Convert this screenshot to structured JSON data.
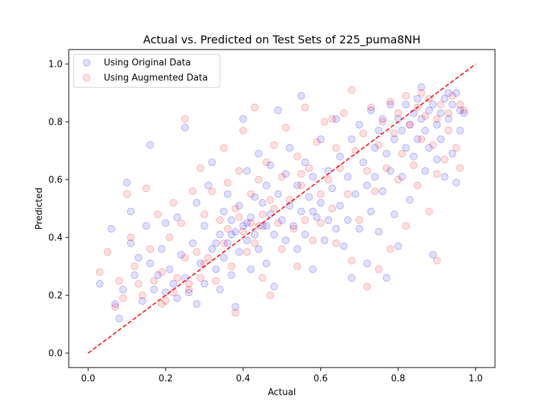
{
  "chart_data": {
    "type": "scatter",
    "title": "Actual vs. Predicted on Test Sets of 225_puma8NH",
    "xlabel": "Actual",
    "ylabel": "Predicted",
    "xlim": [
      -0.05,
      1.05
    ],
    "ylim": [
      -0.05,
      1.05
    ],
    "xticks": [
      "0.0",
      "0.2",
      "0.4",
      "0.6",
      "0.8",
      "1.0"
    ],
    "yticks": [
      "0.0",
      "0.2",
      "0.4",
      "0.6",
      "0.8",
      "1.0"
    ],
    "grid": false,
    "legend_position": "top-left",
    "colors": {
      "original": "#0000ff",
      "augmented": "#ff0000",
      "reference": "#ff0000"
    },
    "reference_line": {
      "style": "dashed",
      "from": [
        0,
        0
      ],
      "to": [
        1,
        1
      ]
    },
    "series": [
      {
        "name": "Using Original Data",
        "color": "#0000ff",
        "points": [
          [
            0.06,
            0.43
          ],
          [
            0.03,
            0.24
          ],
          [
            0.07,
            0.17
          ],
          [
            0.08,
            0.12
          ],
          [
            0.09,
            0.22
          ],
          [
            0.1,
            0.59
          ],
          [
            0.11,
            0.49
          ],
          [
            0.11,
            0.38
          ],
          [
            0.12,
            0.27
          ],
          [
            0.13,
            0.33
          ],
          [
            0.14,
            0.18
          ],
          [
            0.15,
            0.44
          ],
          [
            0.16,
            0.72
          ],
          [
            0.16,
            0.31
          ],
          [
            0.17,
            0.22
          ],
          [
            0.18,
            0.27
          ],
          [
            0.19,
            0.36
          ],
          [
            0.2,
            0.45
          ],
          [
            0.2,
            0.21
          ],
          [
            0.21,
            0.29
          ],
          [
            0.22,
            0.24
          ],
          [
            0.23,
            0.47
          ],
          [
            0.23,
            0.19
          ],
          [
            0.24,
            0.34
          ],
          [
            0.25,
            0.78
          ],
          [
            0.25,
            0.26
          ],
          [
            0.26,
            0.21
          ],
          [
            0.27,
            0.38
          ],
          [
            0.28,
            0.52
          ],
          [
            0.28,
            0.17
          ],
          [
            0.29,
            0.31
          ],
          [
            0.3,
            0.44
          ],
          [
            0.3,
            0.24
          ],
          [
            0.31,
            0.58
          ],
          [
            0.32,
            0.66
          ],
          [
            0.32,
            0.36
          ],
          [
            0.33,
            0.29
          ],
          [
            0.34,
            0.41
          ],
          [
            0.34,
            0.22
          ],
          [
            0.35,
            0.49
          ],
          [
            0.35,
            0.33
          ],
          [
            0.36,
            0.55
          ],
          [
            0.36,
            0.38
          ],
          [
            0.37,
            0.46
          ],
          [
            0.37,
            0.27
          ],
          [
            0.38,
            0.42
          ],
          [
            0.38,
            0.16
          ],
          [
            0.39,
            0.51
          ],
          [
            0.39,
            0.35
          ],
          [
            0.4,
            0.81
          ],
          [
            0.4,
            0.44
          ],
          [
            0.41,
            0.39
          ],
          [
            0.41,
            0.63
          ],
          [
            0.42,
            0.47
          ],
          [
            0.42,
            0.29
          ],
          [
            0.43,
            0.54
          ],
          [
            0.43,
            0.41
          ],
          [
            0.44,
            0.69
          ],
          [
            0.44,
            0.36
          ],
          [
            0.45,
            0.52
          ],
          [
            0.45,
            0.44
          ],
          [
            0.46,
            0.58
          ],
          [
            0.46,
            0.31
          ],
          [
            0.47,
            0.48
          ],
          [
            0.47,
            0.65
          ],
          [
            0.48,
            0.41
          ],
          [
            0.48,
            0.23
          ],
          [
            0.49,
            0.55
          ],
          [
            0.49,
            0.84
          ],
          [
            0.5,
            0.46
          ],
          [
            0.51,
            0.62
          ],
          [
            0.51,
            0.39
          ],
          [
            0.52,
            0.51
          ],
          [
            0.52,
            0.71
          ],
          [
            0.53,
            0.44
          ],
          [
            0.54,
            0.58
          ],
          [
            0.54,
            0.36
          ],
          [
            0.55,
            0.89
          ],
          [
            0.55,
            0.49
          ],
          [
            0.56,
            0.66
          ],
          [
            0.56,
            0.41
          ],
          [
            0.57,
            0.54
          ],
          [
            0.58,
            0.29
          ],
          [
            0.58,
            0.61
          ],
          [
            0.59,
            0.47
          ],
          [
            0.6,
            0.74
          ],
          [
            0.6,
            0.52
          ],
          [
            0.61,
            0.39
          ],
          [
            0.62,
            0.63
          ],
          [
            0.62,
            0.46
          ],
          [
            0.63,
            0.57
          ],
          [
            0.64,
            0.81
          ],
          [
            0.64,
            0.43
          ],
          [
            0.65,
            0.68
          ],
          [
            0.65,
            0.51
          ],
          [
            0.66,
            0.37
          ],
          [
            0.67,
            0.61
          ],
          [
            0.67,
            0.46
          ],
          [
            0.68,
            0.74
          ],
          [
            0.68,
            0.26
          ],
          [
            0.69,
            0.55
          ],
          [
            0.7,
            0.79
          ],
          [
            0.7,
            0.43
          ],
          [
            0.71,
            0.66
          ],
          [
            0.72,
            0.58
          ],
          [
            0.72,
            0.31
          ],
          [
            0.73,
            0.84
          ],
          [
            0.73,
            0.49
          ],
          [
            0.74,
            0.71
          ],
          [
            0.74,
            0.61
          ],
          [
            0.75,
            0.77
          ],
          [
            0.75,
            0.42
          ],
          [
            0.76,
            0.81
          ],
          [
            0.76,
            0.56
          ],
          [
            0.77,
            0.69
          ],
          [
            0.77,
            0.26
          ],
          [
            0.78,
            0.86
          ],
          [
            0.78,
            0.63
          ],
          [
            0.79,
            0.74
          ],
          [
            0.79,
            0.48
          ],
          [
            0.8,
            0.81
          ],
          [
            0.8,
            0.37
          ],
          [
            0.81,
            0.77
          ],
          [
            0.81,
            0.61
          ],
          [
            0.82,
            0.86
          ],
          [
            0.82,
            0.71
          ],
          [
            0.83,
            0.79
          ],
          [
            0.83,
            0.53
          ],
          [
            0.84,
            0.83
          ],
          [
            0.84,
            0.68
          ],
          [
            0.85,
            0.88
          ],
          [
            0.85,
            0.74
          ],
          [
            0.86,
            0.81
          ],
          [
            0.86,
            0.92
          ],
          [
            0.87,
            0.77
          ],
          [
            0.87,
            0.63
          ],
          [
            0.88,
            0.84
          ],
          [
            0.88,
            0.71
          ],
          [
            0.89,
            0.86
          ],
          [
            0.89,
            0.34
          ],
          [
            0.9,
            0.79
          ],
          [
            0.9,
            0.67
          ],
          [
            0.91,
            0.83
          ],
          [
            0.91,
            0.74
          ],
          [
            0.92,
            0.88
          ],
          [
            0.92,
            0.61
          ],
          [
            0.93,
            0.81
          ],
          [
            0.94,
            0.86
          ],
          [
            0.94,
            0.69
          ],
          [
            0.95,
            0.59
          ],
          [
            0.96,
            0.84
          ],
          [
            0.96,
            0.77
          ],
          [
            0.97,
            0.83
          ],
          [
            0.95,
            0.9
          ],
          [
            0.93,
            0.9
          ],
          [
            0.58,
            0.49
          ],
          [
            0.46,
            0.44
          ],
          [
            0.41,
            0.45
          ],
          [
            0.37,
            0.41
          ],
          [
            0.33,
            0.38
          ]
        ]
      },
      {
        "name": "Using Augmented Data",
        "color": "#ff0000",
        "points": [
          [
            0.03,
            0.28
          ],
          [
            0.05,
            0.35
          ],
          [
            0.07,
            0.16
          ],
          [
            0.08,
            0.25
          ],
          [
            0.09,
            0.19
          ],
          [
            0.1,
            0.55
          ],
          [
            0.11,
            0.4
          ],
          [
            0.12,
            0.3
          ],
          [
            0.13,
            0.24
          ],
          [
            0.14,
            0.2
          ],
          [
            0.15,
            0.57
          ],
          [
            0.16,
            0.36
          ],
          [
            0.17,
            0.25
          ],
          [
            0.18,
            0.48
          ],
          [
            0.19,
            0.28
          ],
          [
            0.2,
            0.18
          ],
          [
            0.21,
            0.4
          ],
          [
            0.22,
            0.52
          ],
          [
            0.23,
            0.26
          ],
          [
            0.24,
            0.45
          ],
          [
            0.25,
            0.81
          ],
          [
            0.25,
            0.33
          ],
          [
            0.26,
            0.22
          ],
          [
            0.27,
            0.56
          ],
          [
            0.28,
            0.35
          ],
          [
            0.29,
            0.64
          ],
          [
            0.29,
            0.26
          ],
          [
            0.3,
            0.48
          ],
          [
            0.31,
            0.33
          ],
          [
            0.32,
            0.56
          ],
          [
            0.33,
            0.25
          ],
          [
            0.34,
            0.46
          ],
          [
            0.35,
            0.71
          ],
          [
            0.35,
            0.38
          ],
          [
            0.36,
            0.59
          ],
          [
            0.37,
            0.3
          ],
          [
            0.38,
            0.5
          ],
          [
            0.38,
            0.14
          ],
          [
            0.39,
            0.63
          ],
          [
            0.4,
            0.42
          ],
          [
            0.4,
            0.77
          ],
          [
            0.41,
            0.35
          ],
          [
            0.42,
            0.55
          ],
          [
            0.42,
            0.45
          ],
          [
            0.43,
            0.85
          ],
          [
            0.43,
            0.38
          ],
          [
            0.44,
            0.6
          ],
          [
            0.45,
            0.48
          ],
          [
            0.45,
            0.26
          ],
          [
            0.46,
            0.66
          ],
          [
            0.47,
            0.53
          ],
          [
            0.47,
            0.2
          ],
          [
            0.48,
            0.72
          ],
          [
            0.49,
            0.45
          ],
          [
            0.5,
            0.61
          ],
          [
            0.5,
            0.36
          ],
          [
            0.51,
            0.78
          ],
          [
            0.52,
            0.53
          ],
          [
            0.53,
            0.43
          ],
          [
            0.54,
            0.68
          ],
          [
            0.54,
            0.3
          ],
          [
            0.55,
            0.58
          ],
          [
            0.56,
            0.85
          ],
          [
            0.56,
            0.46
          ],
          [
            0.57,
            0.64
          ],
          [
            0.58,
            0.39
          ],
          [
            0.59,
            0.73
          ],
          [
            0.6,
            0.55
          ],
          [
            0.6,
            0.45
          ],
          [
            0.61,
            0.8
          ],
          [
            0.62,
            0.6
          ],
          [
            0.63,
            0.5
          ],
          [
            0.64,
            0.71
          ],
          [
            0.64,
            0.38
          ],
          [
            0.65,
            0.64
          ],
          [
            0.66,
            0.83
          ],
          [
            0.67,
            0.55
          ],
          [
            0.68,
            0.91
          ],
          [
            0.68,
            0.32
          ],
          [
            0.69,
            0.7
          ],
          [
            0.7,
            0.46
          ],
          [
            0.71,
            0.76
          ],
          [
            0.72,
            0.63
          ],
          [
            0.72,
            0.23
          ],
          [
            0.73,
            0.85
          ],
          [
            0.74,
            0.56
          ],
          [
            0.75,
            0.72
          ],
          [
            0.75,
            0.29
          ],
          [
            0.76,
            0.8
          ],
          [
            0.77,
            0.64
          ],
          [
            0.78,
            0.87
          ],
          [
            0.78,
            0.36
          ],
          [
            0.79,
            0.76
          ],
          [
            0.8,
            0.6
          ],
          [
            0.8,
            0.83
          ],
          [
            0.81,
            0.69
          ],
          [
            0.82,
            0.89
          ],
          [
            0.82,
            0.44
          ],
          [
            0.83,
            0.79
          ],
          [
            0.84,
            0.65
          ],
          [
            0.85,
            0.85
          ],
          [
            0.85,
            0.58
          ],
          [
            0.86,
            0.74
          ],
          [
            0.86,
            0.9
          ],
          [
            0.87,
            0.82
          ],
          [
            0.88,
            0.49
          ],
          [
            0.88,
            0.88
          ],
          [
            0.89,
            0.72
          ],
          [
            0.9,
            0.81
          ],
          [
            0.9,
            0.32
          ],
          [
            0.91,
            0.86
          ],
          [
            0.92,
            0.67
          ],
          [
            0.93,
            0.83
          ],
          [
            0.93,
            0.77
          ],
          [
            0.94,
            0.89
          ],
          [
            0.95,
            0.71
          ],
          [
            0.96,
            0.86
          ],
          [
            0.97,
            0.84
          ],
          [
            0.96,
            0.64
          ],
          [
            0.9,
            0.62
          ],
          [
            0.63,
            0.81
          ],
          [
            0.55,
            0.62
          ],
          [
            0.48,
            0.5
          ],
          [
            0.44,
            0.44
          ],
          [
            0.39,
            0.47
          ],
          [
            0.36,
            0.43
          ],
          [
            0.3,
            0.31
          ],
          [
            0.26,
            0.24
          ],
          [
            0.22,
            0.21
          ],
          [
            0.19,
            0.17
          ]
        ]
      }
    ]
  }
}
